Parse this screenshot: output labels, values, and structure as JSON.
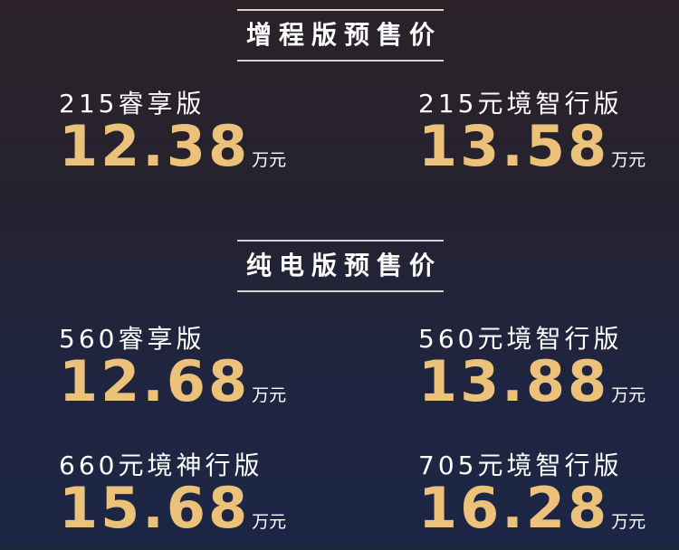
{
  "sections": [
    {
      "title": "增程版预售价",
      "items": [
        {
          "label": "215睿享版",
          "price": "12.38",
          "unit": "万元"
        },
        {
          "label": "215元境智行版",
          "price": "13.58",
          "unit": "万元"
        }
      ]
    },
    {
      "title": "纯电版预售价",
      "items": [
        {
          "label": "560睿享版",
          "price": "12.68",
          "unit": "万元"
        },
        {
          "label": "560元境智行版",
          "price": "13.88",
          "unit": "万元"
        },
        {
          "label": "660元境神行版",
          "price": "15.68",
          "unit": "万元"
        },
        {
          "label": "705元境智行版",
          "price": "16.28",
          "unit": "万元"
        }
      ]
    }
  ],
  "colors": {
    "price": "#ecc27a",
    "text": "#ffffff"
  }
}
